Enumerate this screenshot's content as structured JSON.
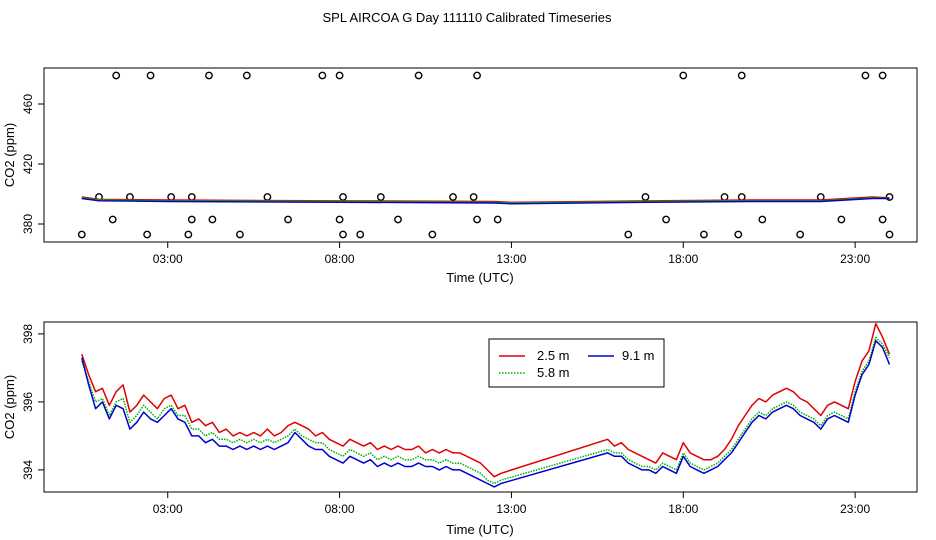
{
  "figure_title": "SPL AIRCOA G  Day 111110  Calibrated Timeseries",
  "colors": {
    "s25": "#e00000",
    "s58": "#00b000",
    "s91": "#0000d0",
    "outline": "#000000"
  },
  "chart_data": [
    {
      "type": "line",
      "title": "",
      "xlabel": "Time (UTC)",
      "ylabel": "CO2 (ppm)",
      "xlim": [
        -0.6,
        24.8
      ],
      "ylim": [
        368,
        484
      ],
      "xticks": [
        3,
        8,
        13,
        18,
        23
      ],
      "xtick_labels": [
        "03:00",
        "08:00",
        "13:00",
        "18:00",
        "23:00"
      ],
      "yticks": [
        380,
        420,
        460
      ],
      "ytick_labels": [
        "380",
        "420",
        "460"
      ],
      "lines": [
        {
          "name": "2.5 m",
          "color": "#e00000",
          "x": [
            0.5,
            1,
            3,
            8,
            12.5,
            13,
            17,
            20,
            22,
            23.5,
            24
          ],
          "y": [
            398,
            396.5,
            396,
            395.5,
            395,
            394.5,
            395.5,
            396,
            396,
            398,
            397.5
          ]
        },
        {
          "name": "5.8 m",
          "color": "#00b000",
          "x": [
            0.5,
            1,
            3,
            8,
            12.5,
            13,
            17,
            20,
            22,
            23.5,
            24
          ],
          "y": [
            397.5,
            396,
            395.5,
            395,
            394.5,
            394,
            395,
            395.5,
            395.5,
            397.5,
            397
          ]
        },
        {
          "name": "9.1 m",
          "color": "#0000d0",
          "x": [
            0.5,
            1,
            3,
            8,
            12.5,
            13,
            17,
            20,
            22,
            23.5,
            24
          ],
          "y": [
            397,
            395.5,
            395,
            394.5,
            394,
            393.5,
            394.5,
            395,
            395,
            397,
            397
          ]
        }
      ],
      "points": {
        "marker": "open-circle",
        "x": [
          1.5,
          2.5,
          4.2,
          5.3,
          7.5,
          8.0,
          10.3,
          12.0,
          18.0,
          19.7,
          23.3,
          23.8,
          1.0,
          1.9,
          3.1,
          3.7,
          5.9,
          8.1,
          9.2,
          11.3,
          11.9,
          16.9,
          19.2,
          19.7,
          22.0,
          24.0,
          1.4,
          3.7,
          4.3,
          6.5,
          8.0,
          9.7,
          12.0,
          12.6,
          17.5,
          20.3,
          22.6,
          23.8,
          0.5,
          2.4,
          3.6,
          5.1,
          8.1,
          8.6,
          10.7,
          16.4,
          18.6,
          19.6,
          21.4,
          24.0
        ],
        "y": [
          479,
          479,
          479,
          479,
          479,
          479,
          479,
          479,
          479,
          479,
          479,
          479,
          398,
          398,
          398,
          398,
          398,
          398,
          398,
          398,
          398,
          398,
          398,
          398,
          398,
          398,
          383,
          383,
          383,
          383,
          383,
          383,
          383,
          383,
          383,
          383,
          383,
          383,
          373,
          373,
          373,
          373,
          373,
          373,
          373,
          373,
          373,
          373,
          373,
          373
        ]
      }
    },
    {
      "type": "line",
      "title": "",
      "xlabel": "Time (UTC)",
      "ylabel": "CO2 (ppm)",
      "xlim": [
        -0.6,
        24.8
      ],
      "ylim": [
        393.35,
        398.35
      ],
      "xticks": [
        3,
        8,
        13,
        18,
        23
      ],
      "xtick_labels": [
        "03:00",
        "08:00",
        "13:00",
        "18:00",
        "23:00"
      ],
      "yticks": [
        394,
        396,
        398
      ],
      "ytick_labels": [
        "394",
        "396",
        "398"
      ],
      "legend": {
        "position": "top-center",
        "entries": [
          "2.5 m",
          "5.8 m",
          "9.1 m"
        ]
      },
      "series": [
        {
          "name": "2.5 m",
          "color": "#e00000",
          "x": [
            0.5,
            0.7,
            0.9,
            1.1,
            1.3,
            1.5,
            1.7,
            1.9,
            2.1,
            2.3,
            2.5,
            2.7,
            2.9,
            3.1,
            3.3,
            3.5,
            3.7,
            3.9,
            4.1,
            4.3,
            4.5,
            4.7,
            4.9,
            5.1,
            5.3,
            5.5,
            5.7,
            5.9,
            6.1,
            6.3,
            6.5,
            6.7,
            6.9,
            7.1,
            7.3,
            7.5,
            7.7,
            7.9,
            8.1,
            8.3,
            8.5,
            8.7,
            8.9,
            9.1,
            9.3,
            9.5,
            9.7,
            9.9,
            10.1,
            10.3,
            10.5,
            10.7,
            10.9,
            11.1,
            11.3,
            11.5,
            11.7,
            11.9,
            12.1,
            12.3,
            12.5,
            12.7,
            15.8,
            16.0,
            16.2,
            16.4,
            16.6,
            16.8,
            17.0,
            17.2,
            17.4,
            17.6,
            17.8,
            18.0,
            18.2,
            18.4,
            18.6,
            18.8,
            19.0,
            19.2,
            19.4,
            19.6,
            19.8,
            20.0,
            20.2,
            20.4,
            20.6,
            20.8,
            21.0,
            21.2,
            21.4,
            21.6,
            21.8,
            22.0,
            22.2,
            22.4,
            22.6,
            22.8,
            23.0,
            23.2,
            23.4,
            23.6,
            23.8,
            24.0
          ],
          "y": [
            397.4,
            396.8,
            396.3,
            396.4,
            395.9,
            396.3,
            396.5,
            395.7,
            395.9,
            396.2,
            396.0,
            395.8,
            396.1,
            396.2,
            395.8,
            395.9,
            395.4,
            395.5,
            395.3,
            395.4,
            395.1,
            395.2,
            395.0,
            395.1,
            395.0,
            395.1,
            395.0,
            395.2,
            395.0,
            395.1,
            395.3,
            395.4,
            395.3,
            395.2,
            395.0,
            395.1,
            394.9,
            394.8,
            394.7,
            394.9,
            394.8,
            394.7,
            394.8,
            394.6,
            394.7,
            394.6,
            394.7,
            394.6,
            394.6,
            394.7,
            394.5,
            394.6,
            394.5,
            394.6,
            394.5,
            394.5,
            394.4,
            394.3,
            394.2,
            394.0,
            393.8,
            393.9,
            394.9,
            394.7,
            394.8,
            394.6,
            394.5,
            394.4,
            394.3,
            394.2,
            394.5,
            394.4,
            394.3,
            394.8,
            394.5,
            394.4,
            394.3,
            394.3,
            394.4,
            394.6,
            394.9,
            395.3,
            395.6,
            395.9,
            396.1,
            396.0,
            396.2,
            396.3,
            396.4,
            396.3,
            396.1,
            396.0,
            395.8,
            395.6,
            395.9,
            396.0,
            395.9,
            395.8,
            396.6,
            397.2,
            397.5,
            398.3,
            397.9,
            397.4
          ],
          "style": "solid"
        },
        {
          "name": "5.8 m",
          "color": "#00b000",
          "x": [
            0.5,
            0.7,
            0.9,
            1.1,
            1.3,
            1.5,
            1.7,
            1.9,
            2.1,
            2.3,
            2.5,
            2.7,
            2.9,
            3.1,
            3.3,
            3.5,
            3.7,
            3.9,
            4.1,
            4.3,
            4.5,
            4.7,
            4.9,
            5.1,
            5.3,
            5.5,
            5.7,
            5.9,
            6.1,
            6.3,
            6.5,
            6.7,
            6.9,
            7.1,
            7.3,
            7.5,
            7.7,
            7.9,
            8.1,
            8.3,
            8.5,
            8.7,
            8.9,
            9.1,
            9.3,
            9.5,
            9.7,
            9.9,
            10.1,
            10.3,
            10.5,
            10.7,
            10.9,
            11.1,
            11.3,
            11.5,
            11.7,
            11.9,
            12.1,
            12.3,
            12.5,
            12.7,
            15.8,
            16.0,
            16.2,
            16.4,
            16.6,
            16.8,
            17.0,
            17.2,
            17.4,
            17.6,
            17.8,
            18.0,
            18.2,
            18.4,
            18.6,
            18.8,
            19.0,
            19.2,
            19.4,
            19.6,
            19.8,
            20.0,
            20.2,
            20.4,
            20.6,
            20.8,
            21.0,
            21.2,
            21.4,
            21.6,
            21.8,
            22.0,
            22.2,
            22.4,
            22.6,
            22.8,
            23.0,
            23.2,
            23.4,
            23.6,
            23.8,
            24.0
          ],
          "y": [
            397.2,
            396.6,
            396.0,
            396.1,
            395.6,
            396.0,
            396.1,
            395.4,
            395.6,
            395.9,
            395.7,
            395.5,
            395.8,
            395.9,
            395.6,
            395.6,
            395.2,
            395.2,
            395.0,
            395.1,
            394.9,
            394.9,
            394.8,
            394.9,
            394.8,
            394.9,
            394.8,
            394.9,
            394.8,
            394.9,
            395.0,
            395.2,
            395.0,
            394.9,
            394.8,
            394.8,
            394.6,
            394.5,
            394.4,
            394.6,
            394.5,
            394.4,
            394.5,
            394.3,
            394.4,
            394.3,
            394.4,
            394.3,
            394.3,
            394.4,
            394.3,
            394.3,
            394.2,
            394.3,
            394.2,
            394.2,
            394.1,
            394.0,
            393.9,
            393.7,
            393.6,
            393.7,
            394.6,
            394.5,
            394.5,
            394.3,
            394.2,
            394.1,
            394.1,
            394.0,
            394.2,
            394.1,
            394.0,
            394.5,
            394.2,
            394.1,
            394.0,
            394.1,
            394.2,
            394.4,
            394.6,
            394.9,
            395.2,
            395.5,
            395.7,
            395.6,
            395.8,
            395.9,
            396.0,
            395.9,
            395.7,
            395.6,
            395.5,
            395.3,
            395.6,
            395.7,
            395.6,
            395.5,
            396.3,
            396.9,
            397.2,
            397.9,
            397.7,
            397.3
          ],
          "style": "dotted"
        },
        {
          "name": "9.1 m",
          "color": "#0000d0",
          "x": [
            0.5,
            0.7,
            0.9,
            1.1,
            1.3,
            1.5,
            1.7,
            1.9,
            2.1,
            2.3,
            2.5,
            2.7,
            2.9,
            3.1,
            3.3,
            3.5,
            3.7,
            3.9,
            4.1,
            4.3,
            4.5,
            4.7,
            4.9,
            5.1,
            5.3,
            5.5,
            5.7,
            5.9,
            6.1,
            6.3,
            6.5,
            6.7,
            6.9,
            7.1,
            7.3,
            7.5,
            7.7,
            7.9,
            8.1,
            8.3,
            8.5,
            8.7,
            8.9,
            9.1,
            9.3,
            9.5,
            9.7,
            9.9,
            10.1,
            10.3,
            10.5,
            10.7,
            10.9,
            11.1,
            11.3,
            11.5,
            11.7,
            11.9,
            12.1,
            12.3,
            12.5,
            12.7,
            15.8,
            16.0,
            16.2,
            16.4,
            16.6,
            16.8,
            17.0,
            17.2,
            17.4,
            17.6,
            17.8,
            18.0,
            18.2,
            18.4,
            18.6,
            18.8,
            19.0,
            19.2,
            19.4,
            19.6,
            19.8,
            20.0,
            20.2,
            20.4,
            20.6,
            20.8,
            21.0,
            21.2,
            21.4,
            21.6,
            21.8,
            22.0,
            22.2,
            22.4,
            22.6,
            22.8,
            23.0,
            23.2,
            23.4,
            23.6,
            23.8,
            24.0
          ],
          "y": [
            397.3,
            396.5,
            395.8,
            396.0,
            395.5,
            395.9,
            395.8,
            395.2,
            395.4,
            395.7,
            395.5,
            395.4,
            395.6,
            395.8,
            395.5,
            395.4,
            395.0,
            395.0,
            394.8,
            394.9,
            394.7,
            394.7,
            394.6,
            394.7,
            394.6,
            394.7,
            394.6,
            394.7,
            394.6,
            394.7,
            394.8,
            395.1,
            394.9,
            394.7,
            394.6,
            394.6,
            394.4,
            394.3,
            394.2,
            394.4,
            394.3,
            394.2,
            394.3,
            394.1,
            394.2,
            394.1,
            394.2,
            394.1,
            394.1,
            394.2,
            394.1,
            394.1,
            394.0,
            394.1,
            394.0,
            394.0,
            393.9,
            393.8,
            393.7,
            393.6,
            393.5,
            393.6,
            394.5,
            394.4,
            394.4,
            394.2,
            394.1,
            394.0,
            394.0,
            393.9,
            394.1,
            394.0,
            393.9,
            394.4,
            394.1,
            394.0,
            393.9,
            394.0,
            394.1,
            394.3,
            394.5,
            394.8,
            395.1,
            395.4,
            395.6,
            395.5,
            395.7,
            395.8,
            395.9,
            395.8,
            395.6,
            395.5,
            395.4,
            395.2,
            395.5,
            395.6,
            395.5,
            395.4,
            396.2,
            396.8,
            397.1,
            397.8,
            397.6,
            397.1
          ],
          "style": "solid"
        }
      ]
    }
  ]
}
